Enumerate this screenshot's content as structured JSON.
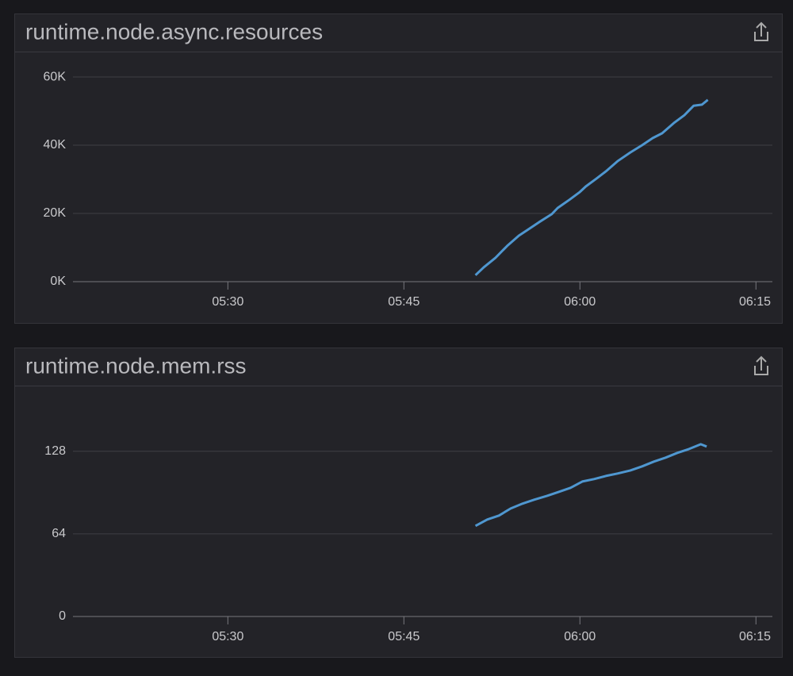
{
  "chart_data": [
    {
      "type": "line",
      "title": "runtime.node.async.resources",
      "color": "#4f97d0",
      "x": [
        351.1,
        351.8,
        352.8,
        353.8,
        354.8,
        355.5,
        356.5,
        357.6,
        358.1,
        359.1,
        360.0,
        360.5,
        361.4,
        362.2,
        363.2,
        364.3,
        365.3,
        366.2,
        367.0,
        368.0,
        368.9,
        369.7,
        370.4,
        370.9
      ],
      "values": [
        1900,
        4200,
        7000,
        10500,
        13500,
        15100,
        17400,
        19800,
        21600,
        24000,
        26300,
        27900,
        30200,
        32300,
        35300,
        37900,
        40000,
        42100,
        43500,
        46500,
        48800,
        51600,
        51900,
        53300
      ],
      "xlim": [
        316.8,
        376.4
      ],
      "xticks": [
        {
          "value": 330,
          "label": "05:30"
        },
        {
          "value": 345,
          "label": "05:45"
        },
        {
          "value": 360,
          "label": "06:00"
        },
        {
          "value": 375,
          "label": "06:15"
        }
      ],
      "ylim": [
        0,
        62800
      ],
      "yticks": [
        {
          "value": 0,
          "label": "0K"
        },
        {
          "value": 20000,
          "label": "20K"
        },
        {
          "value": 40000,
          "label": "40K"
        },
        {
          "value": 60000,
          "label": "60K"
        }
      ],
      "grid": true
    },
    {
      "type": "line",
      "title": "runtime.node.mem.rss",
      "color": "#4f97d0",
      "x": [
        351.1,
        352.1,
        353.1,
        354.1,
        355.1,
        356.1,
        357.2,
        358.2,
        359.2,
        360.2,
        361.2,
        362.2,
        363.2,
        364.3,
        365.3,
        366.3,
        367.3,
        368.3,
        369.3,
        370.3,
        370.8
      ],
      "values": [
        70.2,
        75.1,
        78.2,
        83.7,
        87.4,
        90.5,
        93.5,
        96.6,
        99.7,
        104.6,
        106.5,
        108.9,
        110.8,
        113.2,
        116.3,
        120,
        123.1,
        126.8,
        129.8,
        133.5,
        131.7
      ],
      "xlim": [
        316.8,
        376.4
      ],
      "xticks": [
        {
          "value": 330,
          "label": "05:30"
        },
        {
          "value": 345,
          "label": "05:45"
        },
        {
          "value": 360,
          "label": "06:00"
        },
        {
          "value": 375,
          "label": "06:15"
        }
      ],
      "ylim": [
        0,
        166
      ],
      "yticks": [
        0,
        64,
        128
      ],
      "grid": true
    }
  ]
}
